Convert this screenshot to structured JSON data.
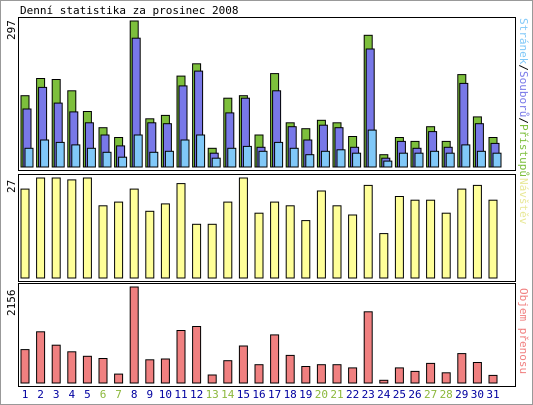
{
  "title": "Denní statistika za prosinec 2008",
  "colors": {
    "hits": "#7dbf3c",
    "files": "#7878e8",
    "pages": "#80c8f8",
    "visits": "#ffff99",
    "kbytes": "#f08080",
    "weekend": "#8cb83c",
    "normal": "#0000a0"
  },
  "legends": {
    "top": [
      {
        "text": "Stránek",
        "color": "#80c8f8"
      },
      {
        "text": "/",
        "color": "#000000"
      },
      {
        "text": "Souborů",
        "color": "#7878e8"
      },
      {
        "text": "/",
        "color": "#000000"
      },
      {
        "text": "Přístupů",
        "color": "#7dbf3c"
      }
    ],
    "middle": {
      "text": "Návštěv",
      "color": "#f0f099"
    },
    "bottom": {
      "text": "Objem přenosu",
      "color": "#f08080"
    }
  },
  "chart_data": [
    {
      "type": "bar",
      "categories": [
        "1",
        "2",
        "3",
        "4",
        "5",
        "6",
        "7",
        "8",
        "9",
        "10",
        "11",
        "12",
        "13",
        "14",
        "15",
        "16",
        "17",
        "18",
        "19",
        "20",
        "21",
        "22",
        "23",
        "24",
        "25",
        "26",
        "27",
        "28",
        "29",
        "30",
        "31"
      ],
      "ymax_label": "297",
      "ylim": [
        0,
        297
      ],
      "series": [
        {
          "name": "Přístupů",
          "values": [
            145,
            180,
            178,
            155,
            113,
            80,
            60,
            297,
            98,
            105,
            185,
            210,
            38,
            140,
            145,
            65,
            190,
            90,
            78,
            95,
            90,
            62,
            268,
            25,
            60,
            52,
            82,
            52,
            188,
            102,
            60
          ]
        },
        {
          "name": "Souborů",
          "values": [
            118,
            162,
            130,
            112,
            90,
            65,
            43,
            262,
            90,
            88,
            165,
            195,
            28,
            110,
            140,
            40,
            155,
            82,
            55,
            85,
            80,
            40,
            240,
            18,
            52,
            38,
            72,
            40,
            170,
            88,
            48
          ]
        },
        {
          "name": "Stránek",
          "values": [
            38,
            55,
            50,
            45,
            38,
            30,
            20,
            65,
            30,
            32,
            55,
            65,
            18,
            38,
            42,
            32,
            50,
            38,
            25,
            32,
            35,
            28,
            75,
            12,
            28,
            28,
            32,
            28,
            45,
            32,
            28
          ]
        }
      ]
    },
    {
      "type": "bar",
      "categories": [
        "1",
        "2",
        "3",
        "4",
        "5",
        "6",
        "7",
        "8",
        "9",
        "10",
        "11",
        "12",
        "13",
        "14",
        "15",
        "16",
        "17",
        "18",
        "19",
        "20",
        "21",
        "22",
        "23",
        "24",
        "25",
        "26",
        "27",
        "28",
        "29",
        "30",
        "31"
      ],
      "ymax_label": "27",
      "ylim": [
        0,
        27
      ],
      "series": [
        {
          "name": "Návštěv",
          "values": [
            24,
            27,
            27,
            26.5,
            27,
            19.5,
            20.5,
            24,
            18,
            20,
            25.5,
            14.5,
            14.5,
            20.5,
            27,
            17.5,
            20.5,
            19.5,
            15.5,
            23.5,
            19.5,
            17,
            25,
            12,
            22,
            21,
            21,
            17.5,
            24,
            25,
            21
          ]
        }
      ]
    },
    {
      "type": "bar",
      "categories": [
        "1",
        "2",
        "3",
        "4",
        "5",
        "6",
        "7",
        "8",
        "9",
        "10",
        "11",
        "12",
        "13",
        "14",
        "15",
        "16",
        "17",
        "18",
        "19",
        "20",
        "21",
        "22",
        "23",
        "24",
        "25",
        "26",
        "27",
        "28",
        "29",
        "30",
        "31"
      ],
      "ymax_label": "2156",
      "ylim": [
        0,
        2156
      ],
      "series": [
        {
          "name": "Objem přenosu",
          "values": [
            750,
            1150,
            850,
            700,
            600,
            550,
            200,
            2156,
            520,
            540,
            1180,
            1270,
            180,
            500,
            830,
            410,
            1080,
            620,
            370,
            410,
            410,
            340,
            1600,
            60,
            340,
            260,
            440,
            230,
            660,
            460,
            170
          ]
        }
      ]
    }
  ],
  "weekends": [
    "6",
    "7",
    "13",
    "14",
    "20",
    "21",
    "27",
    "28"
  ]
}
